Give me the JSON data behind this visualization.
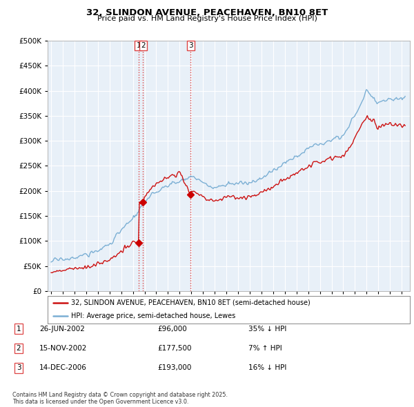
{
  "title": "32, SLINDON AVENUE, PEACEHAVEN, BN10 8ET",
  "subtitle": "Price paid vs. HM Land Registry's House Price Index (HPI)",
  "legend_line1": "32, SLINDON AVENUE, PEACEHAVEN, BN10 8ET (semi-detached house)",
  "legend_line2": "HPI: Average price, semi-detached house, Lewes",
  "footer": "Contains HM Land Registry data © Crown copyright and database right 2025.\nThis data is licensed under the Open Government Licence v3.0.",
  "transactions": [
    {
      "num": 1,
      "date": "26-JUN-2002",
      "price": "£96,000",
      "hpi": "35% ↓ HPI",
      "year": 2002.48,
      "value": 96000
    },
    {
      "num": 2,
      "date": "15-NOV-2002",
      "price": "£177,500",
      "hpi": "7% ↑ HPI",
      "year": 2002.87,
      "value": 177500
    },
    {
      "num": 3,
      "date": "14-DEC-2006",
      "price": "£193,000",
      "hpi": "16% ↓ HPI",
      "year": 2006.95,
      "value": 193000
    }
  ],
  "vline_color": "#dd4444",
  "dot_color": "#cc0000",
  "hpi_color": "#7bafd4",
  "price_color": "#cc1111",
  "chart_bg": "#e8f0f8",
  "ylim": [
    0,
    500000
  ],
  "yticks": [
    0,
    50000,
    100000,
    150000,
    200000,
    250000,
    300000,
    350000,
    400000,
    450000,
    500000
  ],
  "xlim_start": 1994.7,
  "xlim_end": 2025.7,
  "background_color": "#ffffff",
  "grid_color": "#ffffff"
}
